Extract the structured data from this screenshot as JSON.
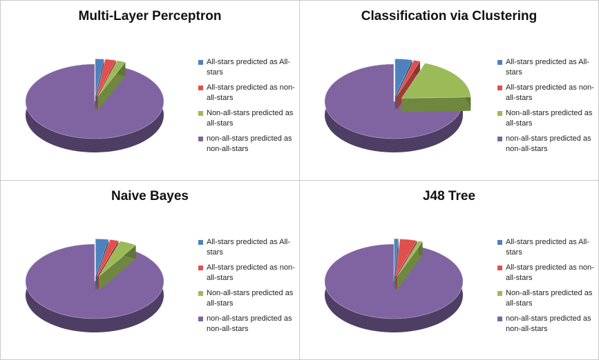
{
  "legend_labels": [
    "All-stars predicted as All-stars",
    "All-stars predicted as non-all-stars",
    "Non-all-stars predicted as all-stars",
    "non-all-stars predicted as non-all-stars"
  ],
  "colors": [
    "#4f81bd",
    "#e0504d",
    "#9bbb59",
    "#8064a2"
  ],
  "chart_data": [
    {
      "type": "pie",
      "title": "Multi-Layer Perceptron",
      "labels": [
        "All-stars predicted as All-stars",
        "All-stars predicted as non-all-stars",
        "Non-all-stars predicted as all-stars",
        "non-all-stars predicted as non-all-stars"
      ],
      "values": [
        2.0,
        2.5,
        2.0,
        93.5
      ],
      "legend_position": "right"
    },
    {
      "type": "pie",
      "title": "Classification via Clustering",
      "labels": [
        "All-stars predicted as All-stars",
        "All-stars predicted as non-all-stars",
        "Non-all-stars predicted as all-stars",
        "non-all-stars predicted as non-all-stars"
      ],
      "values": [
        4.0,
        1.5,
        19.0,
        75.5
      ],
      "legend_position": "right"
    },
    {
      "type": "pie",
      "title": "Naive Bayes",
      "labels": [
        "All-stars predicted as All-stars",
        "All-stars predicted as non-all-stars",
        "Non-all-stars predicted as all-stars",
        "non-all-stars predicted as non-all-stars"
      ],
      "values": [
        3.0,
        2.0,
        4.0,
        91.0
      ],
      "legend_position": "right"
    },
    {
      "type": "pie",
      "title": "J48 Tree",
      "labels": [
        "All-stars predicted as All-stars",
        "All-stars predicted as non-all-stars",
        "Non-all-stars predicted as all-stars",
        "non-all-stars predicted as non-all-stars"
      ],
      "values": [
        1.0,
        4.0,
        1.0,
        94.0
      ],
      "legend_position": "right"
    }
  ]
}
